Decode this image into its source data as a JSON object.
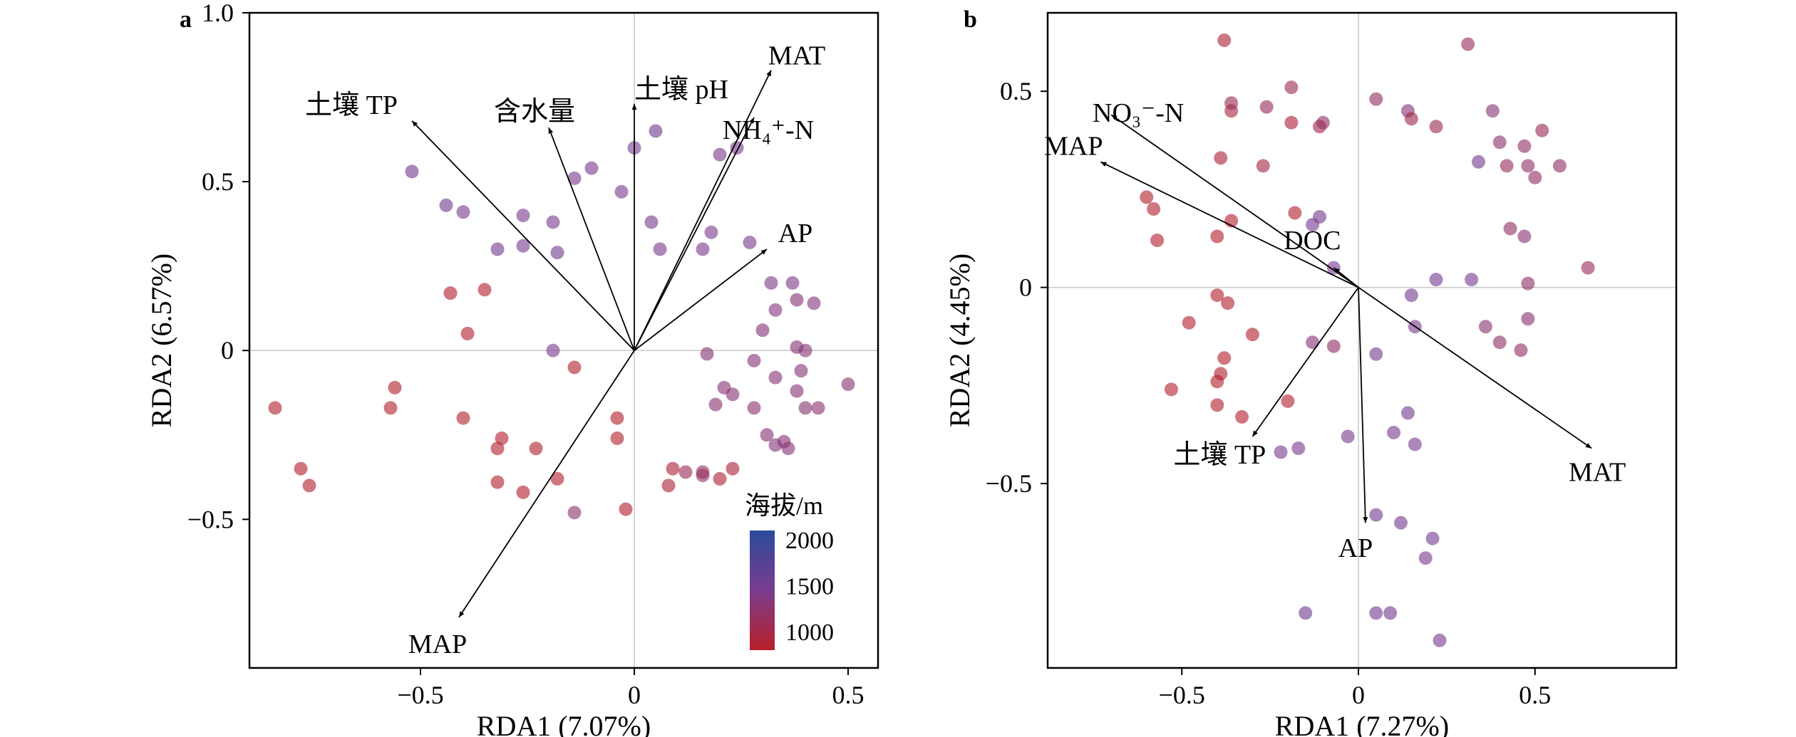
{
  "chart_data": [
    {
      "panel": "a",
      "type": "scatter",
      "xlabel": "RDA1 (7.07%)",
      "ylabel": "RDA2 (6.57%)",
      "xlim": [
        -0.9,
        0.57
      ],
      "ylim": [
        -0.94,
        1.0
      ],
      "xticks": [
        -0.5,
        0,
        0.5
      ],
      "xtick_labels": [
        "−0.5",
        "0",
        "0.5"
      ],
      "yticks": [
        1.0,
        0.5,
        0,
        -0.5
      ],
      "ytick_labels": [
        "1.0",
        "0.5",
        "0",
        "−0.5"
      ],
      "grid": false,
      "zero_lines": true,
      "legend": {
        "title": "海拔/m",
        "position": "bottom-right",
        "ticks": [
          2000,
          1500,
          1000
        ],
        "tick_labels": [
          "2000",
          "1500",
          "1000"
        ],
        "range": [
          800,
          2100
        ],
        "color_high": "#2b4a9c",
        "color_low": "#b82028"
      },
      "vectors": [
        {
          "name": "土壤 TP",
          "x": -0.52,
          "y": 0.68
        },
        {
          "name": "含水量",
          "x": -0.2,
          "y": 0.66
        },
        {
          "name": "土壤 pH",
          "x": 0.0,
          "y": 0.73
        },
        {
          "name": "MAT",
          "x": 0.32,
          "y": 0.83
        },
        {
          "name": "NH₄⁺-N",
          "x": 0.28,
          "y": 0.69
        },
        {
          "name": "AP",
          "x": 0.31,
          "y": 0.3
        },
        {
          "name": "MAP",
          "x": -0.41,
          "y": -0.79
        }
      ],
      "points": [
        {
          "x": -0.52,
          "y": 0.53,
          "elev": 1500
        },
        {
          "x": -0.44,
          "y": 0.43,
          "elev": 1500
        },
        {
          "x": -0.4,
          "y": 0.41,
          "elev": 1450
        },
        {
          "x": -0.32,
          "y": 0.3,
          "elev": 1500
        },
        {
          "x": -0.26,
          "y": 0.31,
          "elev": 1450
        },
        {
          "x": -0.26,
          "y": 0.4,
          "elev": 1450
        },
        {
          "x": -0.19,
          "y": 0.38,
          "elev": 1450
        },
        {
          "x": -0.18,
          "y": 0.29,
          "elev": 1500
        },
        {
          "x": -0.14,
          "y": 0.51,
          "elev": 1450
        },
        {
          "x": -0.1,
          "y": 0.54,
          "elev": 1450
        },
        {
          "x": -0.03,
          "y": 0.47,
          "elev": 1450
        },
        {
          "x": 0.0,
          "y": 0.6,
          "elev": 1450
        },
        {
          "x": 0.05,
          "y": 0.65,
          "elev": 1500
        },
        {
          "x": 0.04,
          "y": 0.38,
          "elev": 1450
        },
        {
          "x": 0.06,
          "y": 0.3,
          "elev": 1450
        },
        {
          "x": 0.16,
          "y": 0.3,
          "elev": 1450
        },
        {
          "x": 0.2,
          "y": 0.58,
          "elev": 1450
        },
        {
          "x": 0.24,
          "y": 0.6,
          "elev": 1450
        },
        {
          "x": 0.18,
          "y": 0.35,
          "elev": 1450
        },
        {
          "x": 0.27,
          "y": 0.32,
          "elev": 1450
        },
        {
          "x": -0.19,
          "y": 0.0,
          "elev": 1450
        },
        {
          "x": -0.43,
          "y": 0.17,
          "elev": 850
        },
        {
          "x": -0.35,
          "y": 0.18,
          "elev": 850
        },
        {
          "x": -0.39,
          "y": 0.05,
          "elev": 850
        },
        {
          "x": -0.84,
          "y": -0.17,
          "elev": 850
        },
        {
          "x": -0.78,
          "y": -0.35,
          "elev": 850
        },
        {
          "x": -0.76,
          "y": -0.4,
          "elev": 850
        },
        {
          "x": -0.56,
          "y": -0.11,
          "elev": 850
        },
        {
          "x": -0.57,
          "y": -0.17,
          "elev": 850
        },
        {
          "x": -0.4,
          "y": -0.2,
          "elev": 850
        },
        {
          "x": -0.31,
          "y": -0.26,
          "elev": 850
        },
        {
          "x": -0.32,
          "y": -0.29,
          "elev": 850
        },
        {
          "x": -0.23,
          "y": -0.29,
          "elev": 850
        },
        {
          "x": -0.32,
          "y": -0.39,
          "elev": 850
        },
        {
          "x": -0.26,
          "y": -0.42,
          "elev": 850
        },
        {
          "x": -0.18,
          "y": -0.38,
          "elev": 850
        },
        {
          "x": -0.14,
          "y": -0.05,
          "elev": 850
        },
        {
          "x": -0.04,
          "y": -0.2,
          "elev": 850
        },
        {
          "x": -0.04,
          "y": -0.26,
          "elev": 850
        },
        {
          "x": -0.02,
          "y": -0.47,
          "elev": 850
        },
        {
          "x": -0.14,
          "y": -0.48,
          "elev": 1250
        },
        {
          "x": 0.08,
          "y": -0.4,
          "elev": 900
        },
        {
          "x": 0.09,
          "y": -0.35,
          "elev": 900
        },
        {
          "x": 0.12,
          "y": -0.36,
          "elev": 1100
        },
        {
          "x": 0.16,
          "y": -0.37,
          "elev": 1200
        },
        {
          "x": 0.16,
          "y": -0.36,
          "elev": 1150
        },
        {
          "x": 0.2,
          "y": -0.38,
          "elev": 900
        },
        {
          "x": 0.23,
          "y": -0.35,
          "elev": 900
        },
        {
          "x": 0.17,
          "y": -0.01,
          "elev": 1300
        },
        {
          "x": 0.21,
          "y": -0.11,
          "elev": 1300
        },
        {
          "x": 0.23,
          "y": -0.13,
          "elev": 1300
        },
        {
          "x": 0.19,
          "y": -0.16,
          "elev": 1250
        },
        {
          "x": 0.28,
          "y": -0.03,
          "elev": 1300
        },
        {
          "x": 0.28,
          "y": -0.17,
          "elev": 1250
        },
        {
          "x": 0.33,
          "y": -0.08,
          "elev": 1300
        },
        {
          "x": 0.35,
          "y": -0.27,
          "elev": 1250
        },
        {
          "x": 0.33,
          "y": -0.28,
          "elev": 1350
        },
        {
          "x": 0.31,
          "y": -0.25,
          "elev": 1300
        },
        {
          "x": 0.36,
          "y": -0.29,
          "elev": 1300
        },
        {
          "x": 0.32,
          "y": 0.2,
          "elev": 1400
        },
        {
          "x": 0.37,
          "y": 0.2,
          "elev": 1400
        },
        {
          "x": 0.38,
          "y": 0.15,
          "elev": 1300
        },
        {
          "x": 0.33,
          "y": 0.12,
          "elev": 1350
        },
        {
          "x": 0.3,
          "y": 0.06,
          "elev": 1300
        },
        {
          "x": 0.42,
          "y": 0.14,
          "elev": 1350
        },
        {
          "x": 0.38,
          "y": 0.01,
          "elev": 1300
        },
        {
          "x": 0.4,
          "y": 0.0,
          "elev": 1300
        },
        {
          "x": 0.39,
          "y": -0.06,
          "elev": 1300
        },
        {
          "x": 0.38,
          "y": -0.12,
          "elev": 1300
        },
        {
          "x": 0.4,
          "y": -0.17,
          "elev": 1300
        },
        {
          "x": 0.43,
          "y": -0.17,
          "elev": 1250
        },
        {
          "x": 0.5,
          "y": -0.1,
          "elev": 1300
        }
      ]
    },
    {
      "panel": "b",
      "type": "scatter",
      "xlabel": "RDA1 (7.27%)",
      "ylabel": "RDA2 (4.45%)",
      "xlim": [
        -0.88,
        0.9
      ],
      "ylim": [
        -0.97,
        0.7
      ],
      "xticks": [
        -0.5,
        0,
        0.5
      ],
      "xtick_labels": [
        "−0.5",
        "0",
        "0.5"
      ],
      "yticks": [
        0.5,
        0,
        -0.5
      ],
      "ytick_labels": [
        "0.5",
        "0",
        "−0.5"
      ],
      "grid": false,
      "zero_lines": true,
      "vectors": [
        {
          "name": "NO₃⁻-N",
          "x": -0.7,
          "y": 0.44
        },
        {
          "name": "MAP",
          "x": -0.73,
          "y": 0.32
        },
        {
          "name": "DOC",
          "x": -0.07,
          "y": 0.05
        },
        {
          "name": "土壤 TP",
          "x": -0.3,
          "y": -0.38
        },
        {
          "name": "AP",
          "x": 0.02,
          "y": -0.6
        },
        {
          "name": "MAT",
          "x": 0.66,
          "y": -0.41
        }
      ],
      "points": [
        {
          "x": -0.38,
          "y": 0.63,
          "elev": 900
        },
        {
          "x": -0.36,
          "y": 0.45,
          "elev": 950
        },
        {
          "x": -0.36,
          "y": 0.47,
          "elev": 1100
        },
        {
          "x": -0.26,
          "y": 0.46,
          "elev": 1150
        },
        {
          "x": -0.19,
          "y": 0.51,
          "elev": 1100
        },
        {
          "x": -0.19,
          "y": 0.42,
          "elev": 900
        },
        {
          "x": -0.11,
          "y": 0.41,
          "elev": 1000
        },
        {
          "x": -0.1,
          "y": 0.42,
          "elev": 1200
        },
        {
          "x": -0.39,
          "y": 0.33,
          "elev": 900
        },
        {
          "x": -0.27,
          "y": 0.31,
          "elev": 1000
        },
        {
          "x": -0.6,
          "y": 0.23,
          "elev": 850
        },
        {
          "x": -0.58,
          "y": 0.2,
          "elev": 850
        },
        {
          "x": -0.57,
          "y": 0.12,
          "elev": 850
        },
        {
          "x": -0.4,
          "y": 0.13,
          "elev": 850
        },
        {
          "x": -0.36,
          "y": 0.17,
          "elev": 850
        },
        {
          "x": -0.18,
          "y": 0.19,
          "elev": 850
        },
        {
          "x": -0.13,
          "y": 0.16,
          "elev": 1500
        },
        {
          "x": -0.11,
          "y": 0.18,
          "elev": 1500
        },
        {
          "x": -0.07,
          "y": 0.05,
          "elev": 1450
        },
        {
          "x": 0.05,
          "y": 0.48,
          "elev": 1200
        },
        {
          "x": 0.14,
          "y": 0.45,
          "elev": 1300
        },
        {
          "x": 0.15,
          "y": 0.43,
          "elev": 1050
        },
        {
          "x": 0.22,
          "y": 0.41,
          "elev": 1100
        },
        {
          "x": 0.31,
          "y": 0.62,
          "elev": 1150
        },
        {
          "x": 0.34,
          "y": 0.32,
          "elev": 1500
        },
        {
          "x": 0.38,
          "y": 0.45,
          "elev": 1300
        },
        {
          "x": 0.4,
          "y": 0.37,
          "elev": 1250
        },
        {
          "x": 0.42,
          "y": 0.31,
          "elev": 1150
        },
        {
          "x": 0.47,
          "y": 0.36,
          "elev": 1200
        },
        {
          "x": 0.48,
          "y": 0.31,
          "elev": 1200
        },
        {
          "x": 0.5,
          "y": 0.28,
          "elev": 1200
        },
        {
          "x": 0.52,
          "y": 0.4,
          "elev": 1100
        },
        {
          "x": 0.57,
          "y": 0.31,
          "elev": 1200
        },
        {
          "x": 0.22,
          "y": 0.02,
          "elev": 1500
        },
        {
          "x": 0.32,
          "y": 0.02,
          "elev": 1500
        },
        {
          "x": 0.43,
          "y": 0.15,
          "elev": 1200
        },
        {
          "x": 0.47,
          "y": 0.13,
          "elev": 1300
        },
        {
          "x": 0.48,
          "y": 0.01,
          "elev": 1200
        },
        {
          "x": 0.65,
          "y": 0.05,
          "elev": 1150
        },
        {
          "x": 0.15,
          "y": -0.02,
          "elev": 1500
        },
        {
          "x": 0.16,
          "y": -0.1,
          "elev": 1450
        },
        {
          "x": 0.36,
          "y": -0.1,
          "elev": 1250
        },
        {
          "x": 0.4,
          "y": -0.14,
          "elev": 1200
        },
        {
          "x": 0.46,
          "y": -0.16,
          "elev": 1200
        },
        {
          "x": 0.48,
          "y": -0.08,
          "elev": 1250
        },
        {
          "x": -0.48,
          "y": -0.09,
          "elev": 850
        },
        {
          "x": -0.4,
          "y": -0.02,
          "elev": 850
        },
        {
          "x": -0.37,
          "y": -0.04,
          "elev": 850
        },
        {
          "x": -0.3,
          "y": -0.12,
          "elev": 850
        },
        {
          "x": -0.53,
          "y": -0.26,
          "elev": 850
        },
        {
          "x": -0.38,
          "y": -0.18,
          "elev": 850
        },
        {
          "x": -0.39,
          "y": -0.22,
          "elev": 850
        },
        {
          "x": -0.4,
          "y": -0.24,
          "elev": 850
        },
        {
          "x": -0.4,
          "y": -0.3,
          "elev": 850
        },
        {
          "x": -0.33,
          "y": -0.33,
          "elev": 850
        },
        {
          "x": -0.2,
          "y": -0.29,
          "elev": 850
        },
        {
          "x": -0.13,
          "y": -0.14,
          "elev": 1300
        },
        {
          "x": -0.07,
          "y": -0.15,
          "elev": 1200
        },
        {
          "x": 0.05,
          "y": -0.17,
          "elev": 1500
        },
        {
          "x": 0.14,
          "y": -0.32,
          "elev": 1500
        },
        {
          "x": 0.1,
          "y": -0.37,
          "elev": 1450
        },
        {
          "x": 0.16,
          "y": -0.4,
          "elev": 1450
        },
        {
          "x": -0.03,
          "y": -0.38,
          "elev": 1450
        },
        {
          "x": -0.17,
          "y": -0.41,
          "elev": 1450
        },
        {
          "x": -0.22,
          "y": -0.42,
          "elev": 1450
        },
        {
          "x": 0.05,
          "y": -0.58,
          "elev": 1500
        },
        {
          "x": 0.12,
          "y": -0.6,
          "elev": 1500
        },
        {
          "x": 0.21,
          "y": -0.64,
          "elev": 1500
        },
        {
          "x": 0.19,
          "y": -0.69,
          "elev": 1450
        },
        {
          "x": -0.15,
          "y": -0.83,
          "elev": 1500
        },
        {
          "x": 0.05,
          "y": -0.83,
          "elev": 1500
        },
        {
          "x": 0.09,
          "y": -0.83,
          "elev": 1500
        },
        {
          "x": 0.23,
          "y": -0.9,
          "elev": 1500
        }
      ]
    }
  ]
}
